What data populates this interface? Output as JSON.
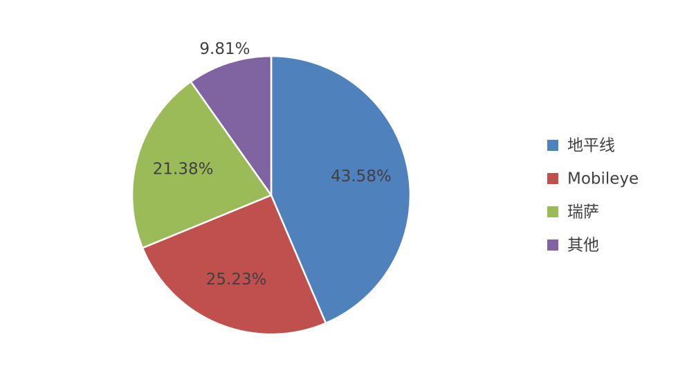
{
  "chart_data": {
    "type": "pie",
    "categories": [
      "地平线",
      "Mobileye",
      "瑞萨",
      "其他"
    ],
    "values": [
      43.58,
      25.23,
      21.38,
      9.81
    ],
    "value_labels": [
      "43.58%",
      "25.23%",
      "21.38%",
      "9.81%"
    ],
    "colors": [
      "#4f81bd",
      "#c0504d",
      "#9bbb59",
      "#8064a2"
    ],
    "legend": "right"
  }
}
